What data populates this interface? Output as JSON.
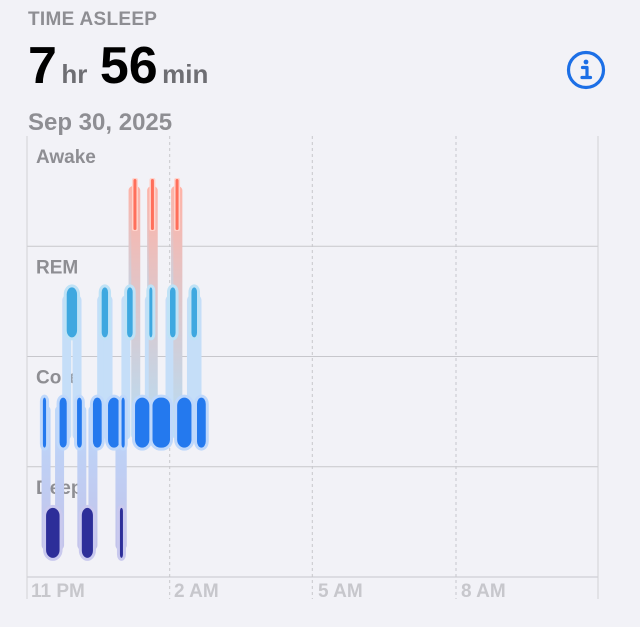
{
  "header": {
    "label": "TIME ASLEEP",
    "hours": "7",
    "hours_unit": "hr",
    "minutes": "56",
    "minutes_unit": "min",
    "date": "Sep 30, 2025"
  },
  "info_icon": "info-circle-icon",
  "colors": {
    "awake": "#ff6f5b",
    "rem": "#3ea8e0",
    "core": "#2479ee",
    "deep": "#2d2e99",
    "label": "#8e8e93"
  },
  "chart_data": {
    "type": "sleep-stage-timeline",
    "stages": [
      "Awake",
      "REM",
      "Core",
      "Deep"
    ],
    "x_ticks": [
      "11 PM",
      "2 AM",
      "5 AM",
      "8 AM"
    ],
    "segments": [
      {
        "stage": "Core",
        "start": "23:20",
        "end": "23:24"
      },
      {
        "stage": "Deep",
        "start": "23:24",
        "end": "23:41"
      },
      {
        "stage": "Core",
        "start": "23:41",
        "end": "23:50"
      },
      {
        "stage": "REM",
        "start": "23:50",
        "end": "00:03"
      },
      {
        "stage": "Core",
        "start": "00:03",
        "end": "00:09"
      },
      {
        "stage": "Deep",
        "start": "00:09",
        "end": "00:23"
      },
      {
        "stage": "Core",
        "start": "00:23",
        "end": "00:34"
      },
      {
        "stage": "REM",
        "start": "00:34",
        "end": "00:42"
      },
      {
        "stage": "Core",
        "start": "00:42",
        "end": "00:57"
      },
      {
        "stage": "Deep",
        "start": "00:57",
        "end": "00:59"
      },
      {
        "stage": "Core",
        "start": "00:59",
        "end": "01:03"
      },
      {
        "stage": "REM",
        "start": "01:06",
        "end": "01:13"
      },
      {
        "stage": "Awake",
        "start": "01:14",
        "end": "01:16"
      },
      {
        "stage": "Core",
        "start": "01:16",
        "end": "01:34"
      },
      {
        "stage": "REM",
        "start": "01:34",
        "end": "01:36"
      },
      {
        "stage": "Awake",
        "start": "01:36",
        "end": "01:38"
      },
      {
        "stage": "Core",
        "start": "01:38",
        "end": "02:00"
      },
      {
        "stage": "REM",
        "start": "02:00",
        "end": "02:07"
      },
      {
        "stage": "Awake",
        "start": "02:07",
        "end": "02:09"
      },
      {
        "stage": "Core",
        "start": "02:09",
        "end": "02:27"
      },
      {
        "stage": "REM",
        "start": "02:27",
        "end": "02:34"
      },
      {
        "stage": "Core",
        "start": "02:34",
        "end": "02:45"
      }
    ]
  }
}
